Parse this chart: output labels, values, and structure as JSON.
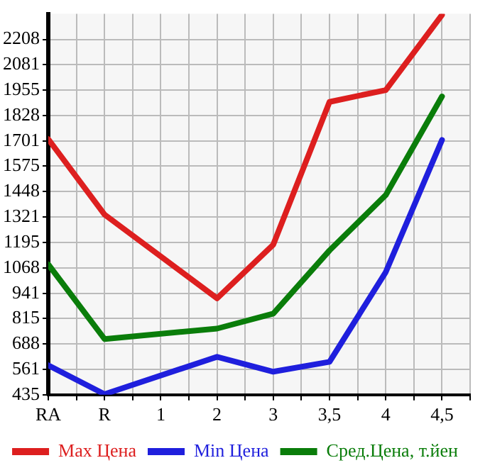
{
  "chart_data": {
    "type": "line",
    "categories": [
      "RA",
      "R",
      "1",
      "2",
      "3",
      "3,5",
      "4",
      "4,5"
    ],
    "series": [
      {
        "name": "Max Цена",
        "color": "#dd1f1f",
        "values": [
          1710,
          1334,
          null,
          916,
          1184,
          1896,
          1955,
          2330
        ]
      },
      {
        "name": "Min Цена",
        "color": "#1f1fdd",
        "values": [
          582,
          438,
          null,
          624,
          550,
          599,
          1047,
          1706
        ]
      },
      {
        "name": "Сред.Цена, т.йен",
        "color": "#0a7d0a",
        "values": [
          1085,
          713,
          null,
          765,
          840,
          1155,
          1431,
          1923
        ]
      }
    ],
    "ylim": [
      435,
      2335
    ],
    "yticks": [
      435,
      561,
      688,
      815,
      941,
      1068,
      1195,
      1321,
      1448,
      1575,
      1701,
      1828,
      1955,
      2081,
      2208
    ],
    "grid": true,
    "legend": "bottom",
    "marker": "none",
    "line_style": "solid"
  }
}
